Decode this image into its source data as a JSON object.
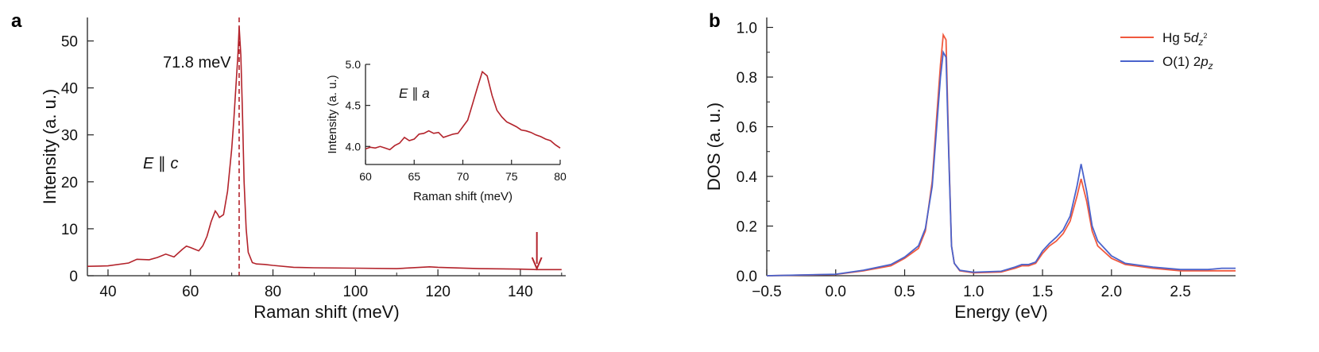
{
  "panels": {
    "a": {
      "label": "a",
      "annotation_peak": "71.8 meV",
      "annotation_pol": {
        "E": "E",
        "sym": " ∥ ",
        "axis": "c"
      }
    },
    "b": {
      "label": "b"
    }
  },
  "chart_data": [
    {
      "type": "line",
      "title": "",
      "xlabel": "Raman shift (meV)",
      "ylabel": "Intensity (a. u.)",
      "xlim": [
        35,
        151
      ],
      "ylim": [
        0,
        55
      ],
      "xticks": [
        40,
        60,
        80,
        100,
        120,
        140
      ],
      "yticks": [
        0,
        10,
        20,
        30,
        40,
        50
      ],
      "color": "#b3232b",
      "peak_marker_x": 71.8,
      "arrow_x": 144,
      "series": [
        {
          "name": "E ∥ c",
          "x": [
            35,
            40,
            45,
            47,
            50,
            52,
            54,
            56,
            58,
            59,
            60,
            62,
            63,
            64,
            65,
            66,
            66.5,
            67,
            68,
            69,
            70,
            70.5,
            71,
            71.5,
            71.8,
            72.2,
            72.6,
            73,
            73.5,
            74,
            75,
            76,
            78,
            80,
            85,
            90,
            100,
            110,
            118,
            120,
            130,
            140,
            144,
            150
          ],
          "y": [
            2.0,
            2.1,
            2.7,
            3.5,
            3.4,
            3.9,
            4.6,
            4.0,
            5.6,
            6.3,
            6.0,
            5.3,
            6.4,
            8.4,
            11.5,
            13.8,
            13.2,
            12.4,
            13.0,
            18.0,
            27.0,
            33.0,
            40.0,
            47.0,
            53.0,
            47.0,
            35.0,
            20.0,
            10.0,
            5.0,
            2.8,
            2.5,
            2.4,
            2.2,
            1.8,
            1.7,
            1.6,
            1.5,
            1.9,
            1.8,
            1.5,
            1.4,
            1.3,
            1.3
          ]
        }
      ]
    },
    {
      "type": "line",
      "title": "",
      "xlabel": "Raman shift (meV)",
      "ylabel": "Intensity (a. u.)",
      "xlim": [
        60,
        80
      ],
      "ylim": [
        3.78,
        5.0
      ],
      "xticks": [
        60,
        65,
        70,
        75,
        80
      ],
      "yticks": [
        4.0,
        4.5,
        5.0
      ],
      "color": "#b3232b",
      "annotation": {
        "E": "E",
        "sym": " ∥ ",
        "axis": "a"
      },
      "series": [
        {
          "name": "E ∥ a",
          "x": [
            60,
            60.5,
            61,
            61.5,
            62,
            62.5,
            63,
            63.5,
            64,
            64.5,
            65,
            65.5,
            66,
            66.5,
            67,
            67.5,
            68,
            68.5,
            69,
            69.5,
            70,
            70.5,
            71,
            71.5,
            72,
            72.5,
            73,
            73.5,
            74,
            74.5,
            75,
            75.5,
            76,
            76.5,
            77,
            77.5,
            78,
            78.5,
            79,
            79.5,
            80
          ],
          "y": [
            3.97,
            3.99,
            3.98,
            4.0,
            3.98,
            3.96,
            4.01,
            4.04,
            4.11,
            4.07,
            4.09,
            4.15,
            4.16,
            4.19,
            4.16,
            4.17,
            4.11,
            4.13,
            4.15,
            4.16,
            4.24,
            4.32,
            4.52,
            4.72,
            4.91,
            4.86,
            4.62,
            4.44,
            4.36,
            4.3,
            4.27,
            4.24,
            4.2,
            4.19,
            4.17,
            4.14,
            4.12,
            4.09,
            4.07,
            4.02,
            3.98
          ]
        }
      ]
    },
    {
      "type": "line",
      "title": "",
      "xlabel": "Energy (eV)",
      "ylabel": "DOS (a. u.)",
      "xlim": [
        -0.5,
        2.9
      ],
      "ylim": [
        0,
        1.04
      ],
      "xticks": [
        -0.5,
        0.0,
        0.5,
        1.0,
        1.5,
        2.0,
        2.5
      ],
      "xtick_labels": [
        "−0.5",
        "0.0",
        "0.5",
        "1.0",
        "1.5",
        "2.0",
        "2.5"
      ],
      "yticks": [
        0.0,
        0.2,
        0.4,
        0.6,
        0.8,
        1.0
      ],
      "ytick_labels": [
        "0.0",
        "0.2",
        "0.4",
        "0.6",
        "0.8",
        "1.0"
      ],
      "legend_position": "top-right",
      "series": [
        {
          "name": "Hg 5d_{z²}",
          "legend": {
            "base": "Hg 5",
            "d": "d",
            "sub": "z",
            "sup": "2"
          },
          "color": "#f0593e",
          "x": [
            -0.5,
            0.0,
            0.2,
            0.4,
            0.5,
            0.6,
            0.65,
            0.7,
            0.73,
            0.76,
            0.78,
            0.8,
            0.82,
            0.84,
            0.86,
            0.9,
            1.0,
            1.2,
            1.3,
            1.35,
            1.4,
            1.45,
            1.5,
            1.55,
            1.6,
            1.65,
            1.7,
            1.75,
            1.78,
            1.82,
            1.86,
            1.9,
            2.0,
            2.1,
            2.3,
            2.5,
            2.7,
            2.8,
            2.9
          ],
          "y": [
            0.0,
            0.005,
            0.02,
            0.04,
            0.07,
            0.11,
            0.18,
            0.38,
            0.62,
            0.85,
            0.97,
            0.95,
            0.5,
            0.12,
            0.05,
            0.02,
            0.012,
            0.015,
            0.03,
            0.04,
            0.04,
            0.05,
            0.09,
            0.12,
            0.14,
            0.17,
            0.22,
            0.32,
            0.39,
            0.3,
            0.18,
            0.12,
            0.07,
            0.045,
            0.03,
            0.02,
            0.02,
            0.02,
            0.02
          ]
        },
        {
          "name": "O(1) 2p_z",
          "legend": {
            "base": "O(1) 2",
            "d": "p",
            "sub": "z",
            "sup": ""
          },
          "color": "#4a63cc",
          "x": [
            -0.5,
            0.0,
            0.2,
            0.4,
            0.5,
            0.6,
            0.65,
            0.7,
            0.73,
            0.76,
            0.78,
            0.8,
            0.82,
            0.84,
            0.86,
            0.9,
            1.0,
            1.2,
            1.3,
            1.35,
            1.4,
            1.45,
            1.5,
            1.55,
            1.6,
            1.65,
            1.7,
            1.75,
            1.78,
            1.82,
            1.86,
            1.9,
            2.0,
            2.1,
            2.3,
            2.5,
            2.7,
            2.8,
            2.9
          ],
          "y": [
            0.0,
            0.006,
            0.022,
            0.045,
            0.075,
            0.12,
            0.19,
            0.36,
            0.58,
            0.8,
            0.9,
            0.88,
            0.48,
            0.12,
            0.05,
            0.022,
            0.014,
            0.018,
            0.035,
            0.045,
            0.045,
            0.055,
            0.1,
            0.13,
            0.155,
            0.185,
            0.24,
            0.36,
            0.45,
            0.34,
            0.2,
            0.14,
            0.08,
            0.05,
            0.035,
            0.025,
            0.025,
            0.03,
            0.03
          ]
        }
      ]
    }
  ]
}
